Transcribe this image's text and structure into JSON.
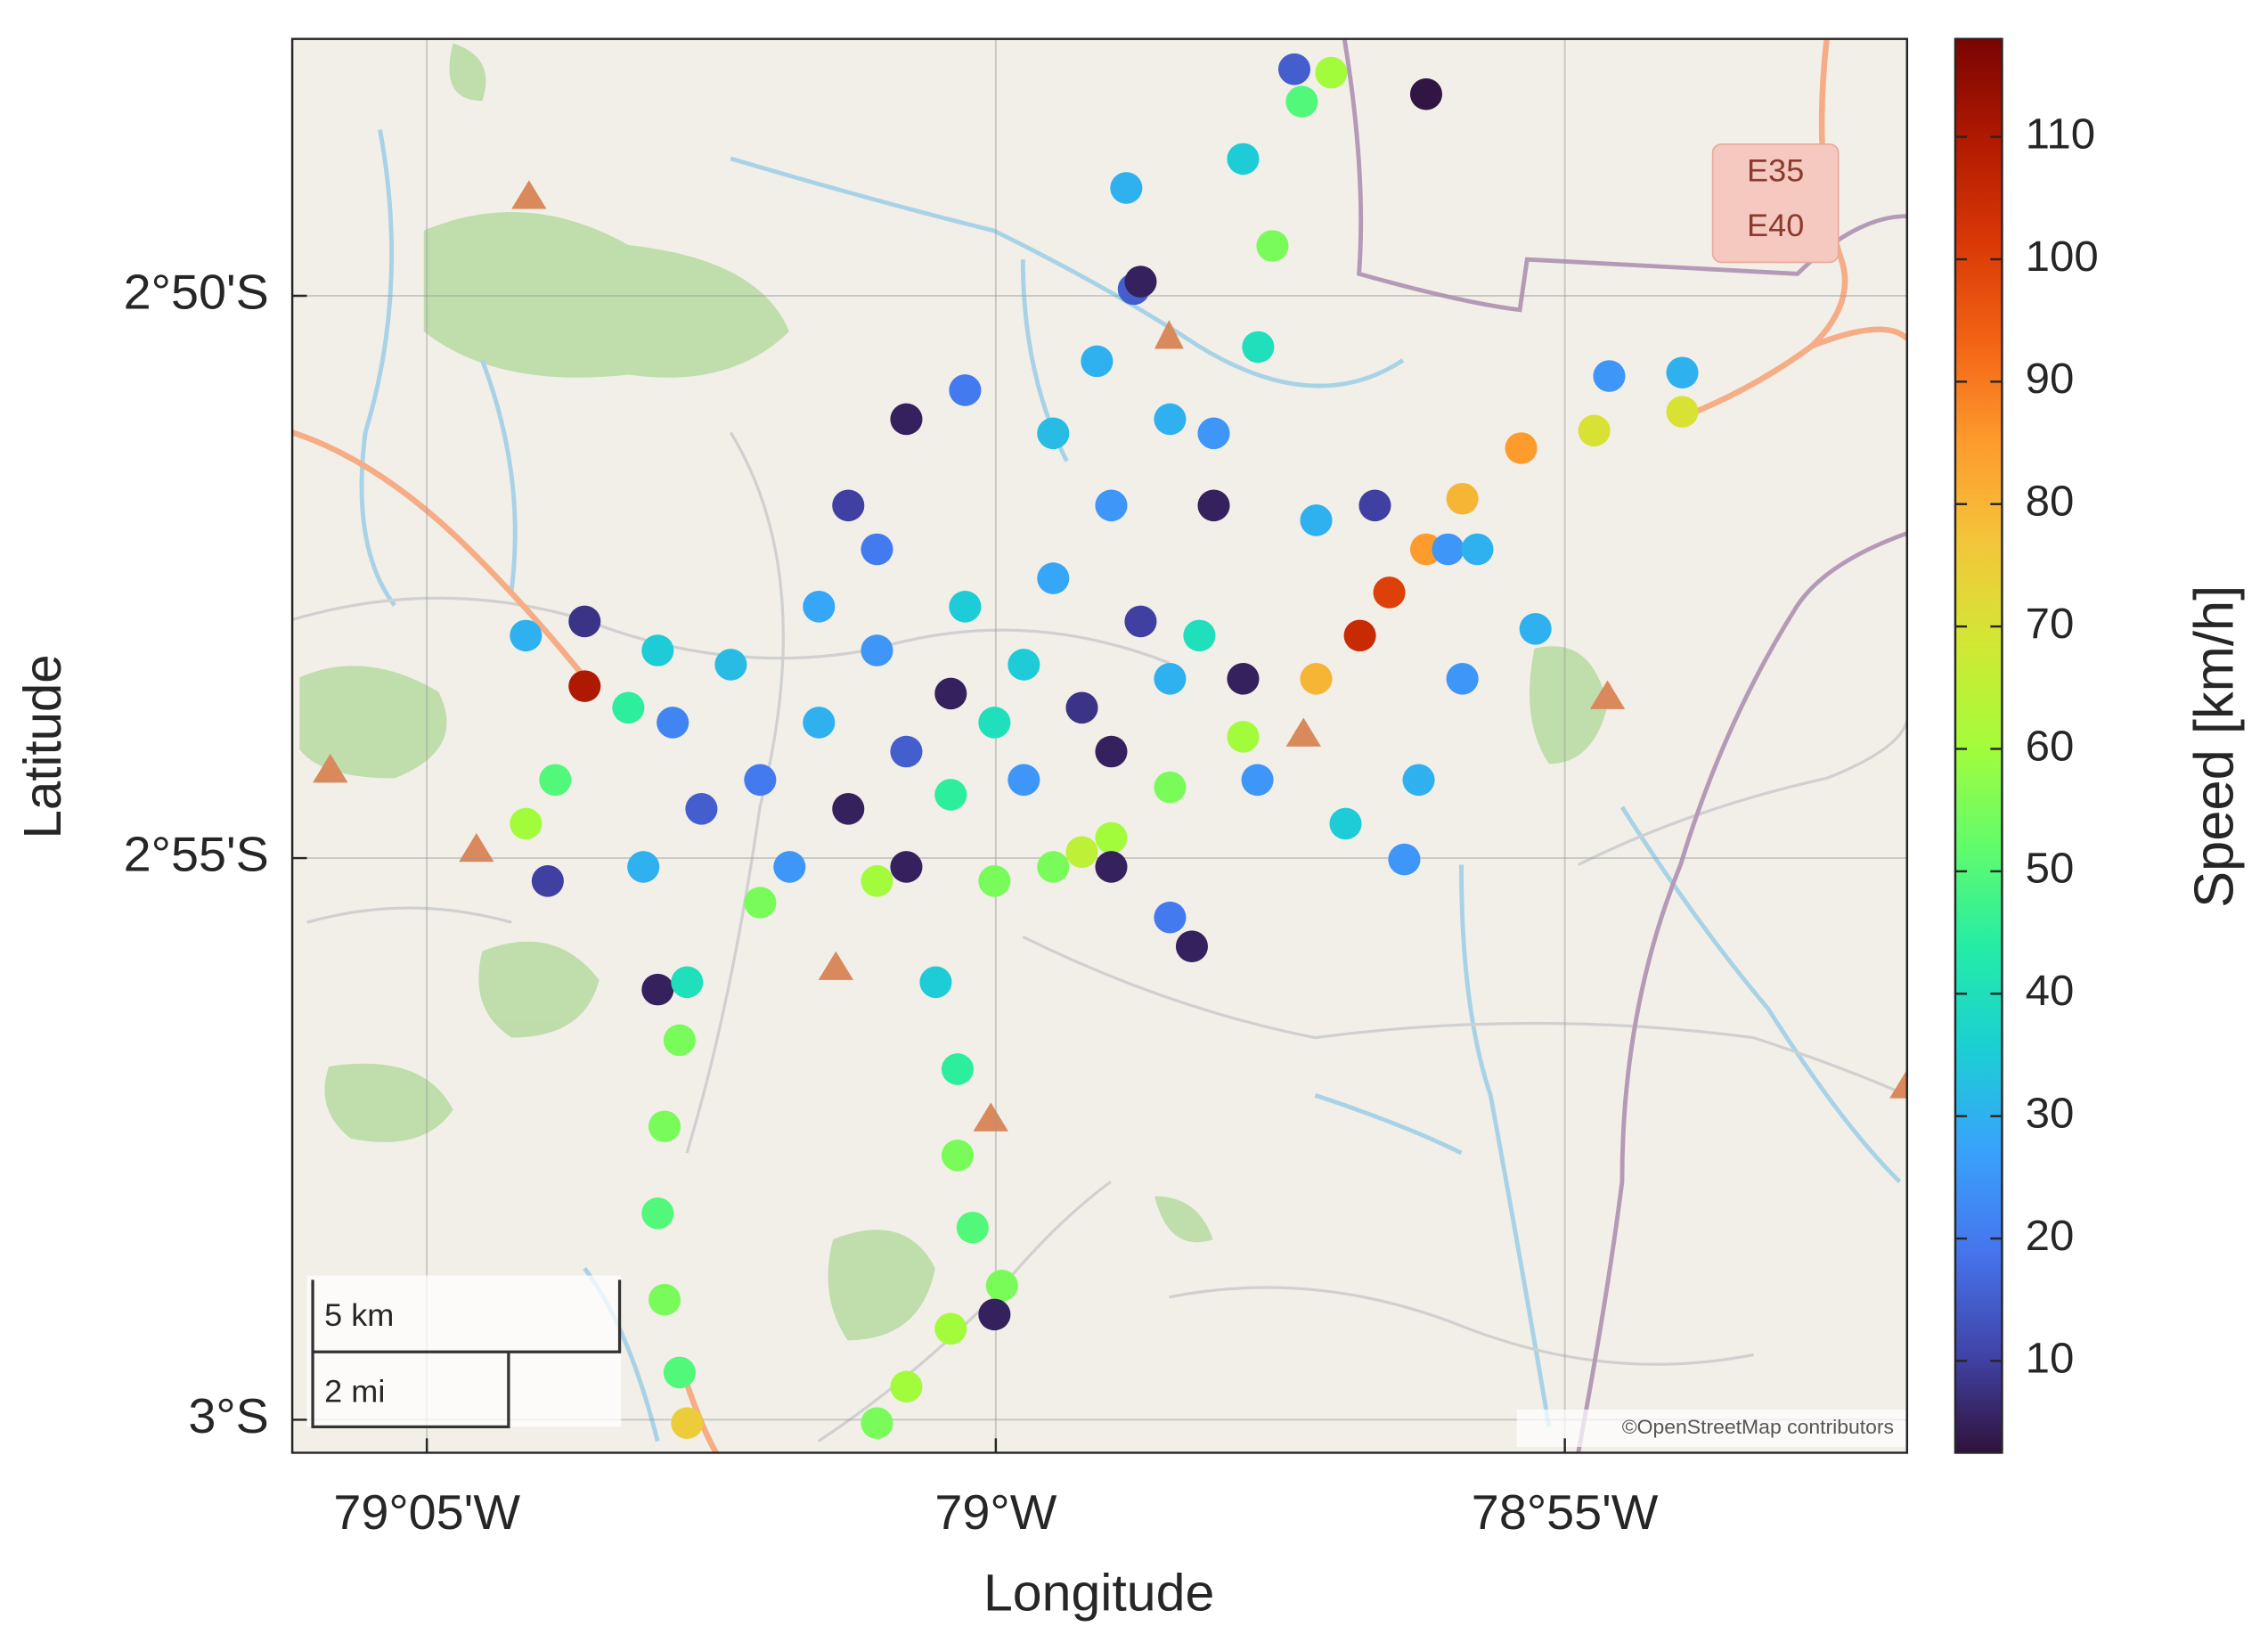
{
  "chart_data": {
    "type": "scatter",
    "x_label": "Longitude",
    "y_label": "Latitude",
    "colorbar_label": "Speed [km/h]",
    "xlim": [
      -79.103,
      -78.8666
    ],
    "ylim": [
      -3.0049,
      -2.7952
    ],
    "xticks": [
      {
        "value": -79.0833,
        "label": "79°05'W"
      },
      {
        "value": -79.0,
        "label": "79°W"
      },
      {
        "value": -78.9167,
        "label": "78°55'W"
      }
    ],
    "yticks": [
      {
        "value": -3.0,
        "label": "3°S"
      },
      {
        "value": -2.9167,
        "label": "2°55'S"
      },
      {
        "value": -2.8333,
        "label": "2°50'S"
      }
    ],
    "grid": true,
    "clim": [
      2.5,
      118
    ],
    "cticks": [
      10,
      20,
      30,
      40,
      50,
      60,
      70,
      80,
      90,
      100,
      110
    ],
    "colormap": [
      "#30123b",
      "#4145ab",
      "#4675ed",
      "#39a2fc",
      "#1bcfd4",
      "#24eca6",
      "#61fc6c",
      "#a4fc3b",
      "#d1e834",
      "#f3c63a",
      "#fe9b2d",
      "#f36315",
      "#d93806",
      "#b11901",
      "#7a0403"
    ],
    "scale_bar": [
      "5 km",
      "2 mi"
    ],
    "map_labels": [
      "E35",
      "E40"
    ],
    "attribution": "©OpenStreetMap contributors",
    "x": [
      -78.9916,
      -78.9831,
      -78.9745,
      -78.9638,
      -78.9531,
      -78.9467,
      -78.9424,
      -78.937,
      -78.9317,
      -78.9231,
      -78.9124,
      -78.8995,
      -79.0174,
      -79.0066,
      -78.9959,
      -79.0131,
      -79.0002,
      -78.9874,
      -79.0259,
      -79.0345,
      -79.0216,
      -79.0066,
      -78.9959,
      -78.9831,
      -78.9745,
      -78.9788,
      -79.0045,
      -79.0174,
      -79.0259,
      -79.0388,
      -79.0473,
      -79.0431,
      -79.0302,
      -79.0131,
      -78.9916,
      -78.9831,
      -78.9681,
      -78.9916,
      -79.0045,
      -79.0131,
      -79.0216,
      -78.9702,
      -78.9638,
      -79.0688,
      -79.0602,
      -79.0602,
      -79.0538,
      -79.0645,
      -79.0688,
      -79.0656,
      -79.0516,
      -79.0495,
      -79.0495,
      -79.0452,
      -79.0463,
      -79.0485,
      -79.0495,
      -79.0485,
      -79.0463,
      -79.0452,
      -79.0088,
      -79.0056,
      -79.0056,
      -79.0034,
      -78.9991,
      -79.0002,
      -79.0066,
      -79.0131,
      -79.0174,
      -78.9809,
      -78.9798,
      -78.9852,
      -78.9638,
      -78.9595,
      -78.9616,
      -78.9552,
      -78.9509,
      -78.9563,
      -78.937,
      -78.9788,
      -78.9745,
      -78.9681,
      -78.9531,
      -78.9445,
      -78.9338,
      -78.9295,
      -78.921,
      -78.9317,
      -78.9381,
      -78.9402,
      -78.9488,
      -78.9617,
      -78.9102,
      -78.8995,
      -78.9713,
      -78.9745,
      -78.9831,
      -79.0345,
      -79.0174,
      -79.0002,
      -78.9874
    ],
    "y": [
      -2.918,
      -2.9137,
      -2.9062,
      -2.8987,
      -2.8901,
      -2.8837,
      -2.8773,
      -2.8709,
      -2.8634,
      -2.8559,
      -2.8533,
      -2.8505,
      -2.8859,
      -2.8923,
      -2.888,
      -2.9009,
      -2.8966,
      -2.8944,
      -2.8966,
      -2.9051,
      -2.9094,
      -2.9073,
      -2.9051,
      -2.9009,
      -2.8901,
      -2.8816,
      -2.8794,
      -2.8709,
      -2.8794,
      -2.888,
      -2.8966,
      -2.9094,
      -2.918,
      -2.918,
      -2.8752,
      -2.8644,
      -2.8644,
      -2.8537,
      -2.8473,
      -2.8516,
      -2.8644,
      -2.8837,
      -2.8901,
      -2.8837,
      -2.8816,
      -2.8912,
      -2.8944,
      -2.9051,
      -2.9116,
      -2.9201,
      -2.918,
      -2.8859,
      -2.9362,
      -2.9351,
      -2.9437,
      -2.9565,
      -2.9694,
      -2.9822,
      -2.993,
      -3.0005,
      -2.9351,
      -2.948,
      -2.9608,
      -2.9715,
      -2.9801,
      -2.9844,
      -2.9865,
      -2.9951,
      -3.0005,
      -2.8173,
      -2.8323,
      -2.843,
      -2.813,
      -2.8259,
      -2.8409,
      -2.8045,
      -2.8002,
      -2.7997,
      -2.8034,
      -2.8312,
      -2.8516,
      -2.8537,
      -2.8666,
      -2.8644,
      -2.8709,
      -2.8709,
      -2.8827,
      -2.8901,
      -2.9051,
      -2.9169,
      -2.9116,
      -2.9051,
      -2.8452,
      -2.8447,
      -2.9298,
      -2.9255,
      -2.918,
      -2.9233,
      -2.9201,
      -2.9201,
      -2.9158
    ],
    "speed": [
      55,
      60,
      55,
      60,
      80,
      105,
      100,
      85,
      80,
      85,
      70,
      70,
      25,
      5,
      35,
      15,
      40,
      8,
      30,
      20,
      5,
      45,
      25,
      5,
      30,
      10,
      35,
      20,
      28,
      32,
      22,
      15,
      25,
      5,
      28,
      25,
      5,
      32,
      20,
      5,
      10,
      40,
      5,
      30,
      8,
      110,
      45,
      50,
      60,
      10,
      30,
      35,
      5,
      40,
      55,
      55,
      50,
      55,
      50,
      75,
      35,
      45,
      55,
      50,
      55,
      5,
      60,
      60,
      55,
      30,
      15,
      30,
      35,
      55,
      40,
      50,
      60,
      15,
      3,
      5,
      30,
      25,
      30,
      10,
      25,
      30,
      30,
      25,
      30,
      25,
      35,
      25,
      25,
      30,
      5,
      20,
      5,
      55,
      60,
      55,
      65
    ]
  }
}
